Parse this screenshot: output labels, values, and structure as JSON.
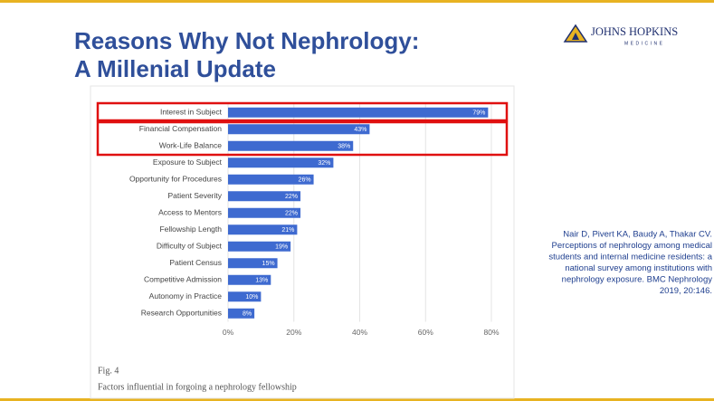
{
  "slide": {
    "title_lines": [
      "Reasons Why Not Nephrology:",
      "A Millenial Update"
    ],
    "logo": {
      "name": "JOHNS HOPKINS",
      "sub": "MEDICINE"
    },
    "citation_lines": [
      "Nair D, Pivert KA, Baudy A, Thakar CV.",
      "Perceptions of nephrology among medical",
      "students and internal medicine residents: a",
      "national survey among institutions with",
      "nephrology exposure. BMC Nephrology",
      "2019, 20:146."
    ],
    "figure_label": "Fig. 4",
    "figure_caption": "Factors influential in forgoing a nephrology fellowship"
  },
  "chart_data": {
    "type": "hbar",
    "categories": [
      "Interest in Subject",
      "Financial Compensation",
      "Work-Life Balance",
      "Exposure to Subject",
      "Opportunity for Procedures",
      "Patient Severity",
      "Access to Mentors",
      "Fellowship Length",
      "Difficulty of Subject",
      "Patient Census",
      "Competitive Admission",
      "Autonomy in Practice",
      "Research Opportunities"
    ],
    "values": [
      79,
      43,
      38,
      32,
      26,
      22,
      22,
      21,
      19,
      15,
      13,
      10,
      8
    ],
    "value_labels": [
      "79%",
      "43%",
      "38%",
      "32%",
      "26%",
      "22%",
      "22%",
      "21%",
      "19%",
      "15%",
      "13%",
      "10%",
      "8%"
    ],
    "color": "#3e6ad0",
    "xlim": [
      0,
      80
    ],
    "xticks": [
      {
        "value": 0,
        "label": "0%"
      },
      {
        "value": 20,
        "label": "20%"
      },
      {
        "value": 40,
        "label": "40%"
      },
      {
        "value": 60,
        "label": "60%"
      },
      {
        "value": 80,
        "label": "80%"
      }
    ],
    "grid": true
  }
}
